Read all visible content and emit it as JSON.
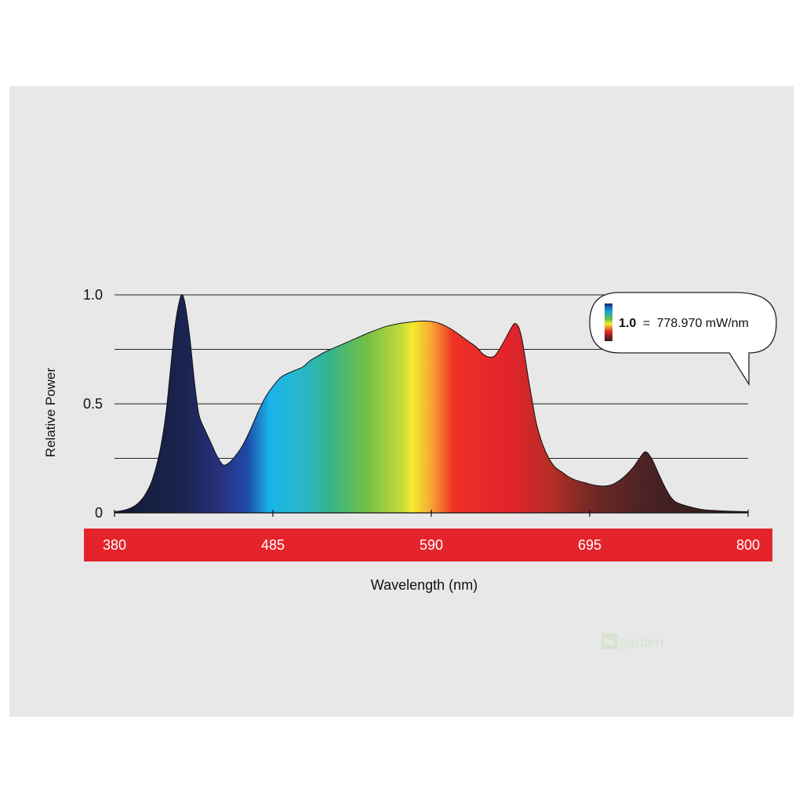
{
  "chart_data": {
    "type": "area",
    "title": "",
    "xlabel": "Wavelength (nm)",
    "ylabel": "Relative Power",
    "xlim": [
      380,
      800
    ],
    "ylim": [
      0,
      1.0
    ],
    "x_ticks": [
      "380",
      "485",
      "590",
      "695",
      "800"
    ],
    "y_ticks": [
      "1.0",
      "0.5",
      "0"
    ],
    "grid": true,
    "axis_band_color": "#e4232b",
    "series": [
      {
        "x": [
          380,
          385,
          390,
          395,
          400,
          405,
          410,
          414,
          417,
          420,
          423,
          425,
          427,
          430,
          433,
          436,
          440,
          444,
          448,
          452,
          456,
          460,
          465,
          470,
          475,
          480,
          485,
          490,
          495,
          500,
          505,
          510,
          515,
          520,
          530,
          540,
          550,
          560,
          570,
          580,
          585,
          590,
          595,
          600,
          605,
          610,
          615,
          620,
          624,
          628,
          632,
          636,
          640,
          644,
          646,
          648,
          650,
          652,
          654,
          656,
          658,
          660,
          664,
          668,
          672,
          676,
          680,
          684,
          688,
          692,
          696,
          700,
          705,
          710,
          715,
          720,
          724,
          728,
          732,
          736,
          740,
          744,
          748,
          752,
          760,
          770,
          780,
          790,
          800
        ],
        "y": [
          0.005,
          0.01,
          0.02,
          0.04,
          0.08,
          0.15,
          0.28,
          0.45,
          0.65,
          0.85,
          0.97,
          1.0,
          0.95,
          0.8,
          0.6,
          0.45,
          0.38,
          0.32,
          0.26,
          0.22,
          0.23,
          0.26,
          0.31,
          0.38,
          0.46,
          0.53,
          0.58,
          0.62,
          0.64,
          0.655,
          0.67,
          0.7,
          0.72,
          0.74,
          0.77,
          0.8,
          0.83,
          0.855,
          0.87,
          0.878,
          0.88,
          0.878,
          0.87,
          0.855,
          0.835,
          0.81,
          0.785,
          0.76,
          0.73,
          0.715,
          0.72,
          0.76,
          0.81,
          0.86,
          0.868,
          0.85,
          0.8,
          0.72,
          0.63,
          0.55,
          0.47,
          0.4,
          0.31,
          0.25,
          0.21,
          0.19,
          0.17,
          0.155,
          0.145,
          0.138,
          0.13,
          0.125,
          0.123,
          0.13,
          0.15,
          0.18,
          0.21,
          0.25,
          0.28,
          0.25,
          0.19,
          0.13,
          0.08,
          0.05,
          0.03,
          0.015,
          0.01,
          0.007,
          0.005
        ]
      }
    ]
  },
  "callout": {
    "value_bold": "1.0",
    "equals": "=",
    "value_text": "778.970 mW/nm"
  },
  "watermark": {
    "hi": "hi",
    "garden": "garden"
  }
}
